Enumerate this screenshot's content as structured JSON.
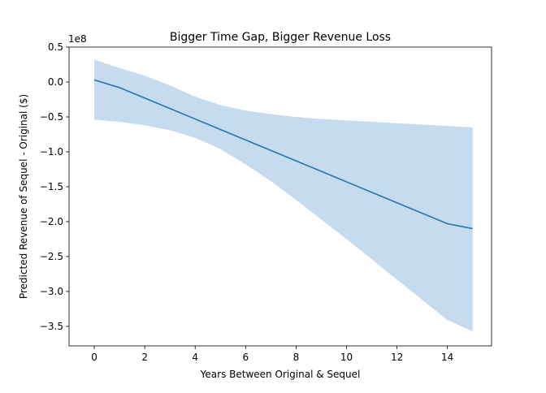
{
  "chart_data": {
    "type": "line",
    "title": "Bigger Time Gap, Bigger Revenue Loss",
    "xlabel": "Years Between Original & Sequel",
    "ylabel": "Predicted Revenue of Sequel - Original ($)",
    "y_offset_label": "1e8",
    "y_scale": 100000000,
    "xlim": [
      -1,
      15.75
    ],
    "ylim": [
      -3.78,
      0.5
    ],
    "x_ticks": [
      0,
      2,
      4,
      6,
      8,
      10,
      12,
      14
    ],
    "x_tick_labels": [
      "0",
      "2",
      "4",
      "6",
      "8",
      "10",
      "12",
      "14"
    ],
    "y_ticks": [
      0.5,
      0.0,
      -0.5,
      -1.0,
      -1.5,
      -2.0,
      -2.5,
      -3.0,
      -3.5
    ],
    "y_tick_labels": [
      "0.5",
      "0.0",
      "−0.5",
      "−1.0",
      "−1.5",
      "−2.0",
      "−2.5",
      "−3.0",
      "−3.5"
    ],
    "grid": false,
    "legend": "none",
    "series": [
      {
        "x": [
          0,
          1,
          2,
          3,
          4,
          5,
          6,
          7,
          8,
          9,
          10,
          11,
          12,
          13,
          14,
          15
        ],
        "values": [
          0.03,
          -0.08,
          -0.23,
          -0.38,
          -0.53,
          -0.68,
          -0.83,
          -0.98,
          -1.13,
          -1.28,
          -1.43,
          -1.58,
          -1.73,
          -1.88,
          -2.03,
          -2.1
        ],
        "color": "#1f77b4"
      }
    ],
    "confidence_band": {
      "x": [
        0,
        1,
        2,
        3,
        4,
        5,
        6,
        7,
        8,
        9,
        10,
        11,
        12,
        13,
        14,
        15
      ],
      "upper": [
        0.32,
        0.2,
        0.09,
        -0.05,
        -0.21,
        -0.33,
        -0.41,
        -0.46,
        -0.5,
        -0.53,
        -0.55,
        -0.57,
        -0.59,
        -0.61,
        -0.63,
        -0.65
      ],
      "lower": [
        -0.54,
        -0.57,
        -0.62,
        -0.69,
        -0.8,
        -0.96,
        -1.18,
        -1.42,
        -1.69,
        -1.97,
        -2.25,
        -2.54,
        -2.83,
        -3.12,
        -3.41,
        -3.57
      ],
      "color": "#c6dcee"
    }
  }
}
